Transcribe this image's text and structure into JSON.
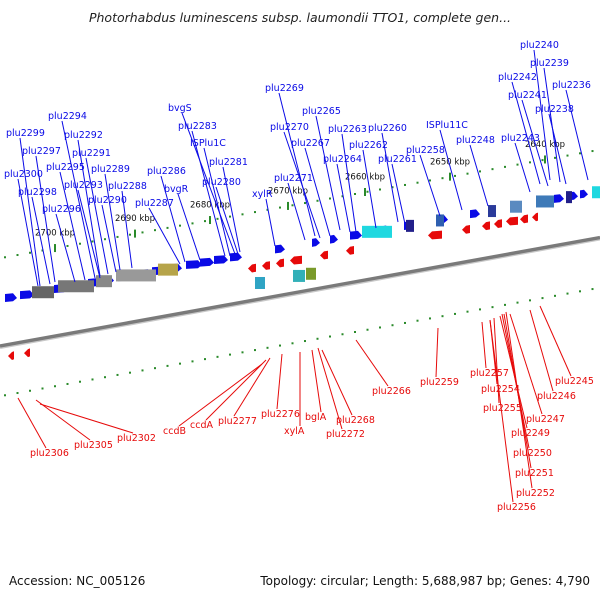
{
  "title": "Photorhabdus luminescens subsp. laumondii TTO1, complete gen...",
  "footer": {
    "accession": "Accession: NC_005126",
    "summary": "Topology: circular; Length: 5,688,987 bp; Genes: 4,790"
  },
  "colors": {
    "forward": "#0a0ae6",
    "reverse": "#e60a0a",
    "backbone": "#7a7a7a",
    "tick": "#2a8a2a"
  },
  "kbp_labels": [
    "2640 kbp",
    "2650 kbp",
    "2660 kbp",
    "2670 kbp",
    "2680 kbp",
    "2690 kbp",
    "2700 kbp"
  ],
  "forward_genes": [
    "plu2240",
    "plu2239",
    "plu2242",
    "plu2236",
    "plu2241",
    "plu2238",
    "plu2243",
    "plu2269",
    "plu2265",
    "plu2270",
    "plu2263",
    "plu2267",
    "plu2262",
    "plu2264",
    "plu2260",
    "plu2261",
    "ISPlu11C",
    "plu2258",
    "plu2248",
    "plu2271",
    "xylR",
    "bvgS",
    "plu2283",
    "ISPlu1C",
    "plu2281",
    "plu2280",
    "plu2286",
    "bvgR",
    "plu2287",
    "plu2294",
    "plu2299",
    "plu2292",
    "plu2297",
    "plu2291",
    "plu2295",
    "plu2300",
    "plu2289",
    "plu2293",
    "plu2288",
    "plu2298",
    "plu2290",
    "plu2296"
  ],
  "reverse_genes": [
    "plu2306",
    "plu2305",
    "plu2302",
    "ccdB",
    "ccdA",
    "plu2277",
    "plu2276",
    "xylA",
    "bglA",
    "plu2272",
    "plu2268",
    "plu2266",
    "plu2259",
    "plu2257",
    "plu2254",
    "plu2255",
    "plu2247",
    "plu2249",
    "plu2250",
    "plu2251",
    "plu2252",
    "plu2256",
    "plu2246",
    "plu2245"
  ]
}
